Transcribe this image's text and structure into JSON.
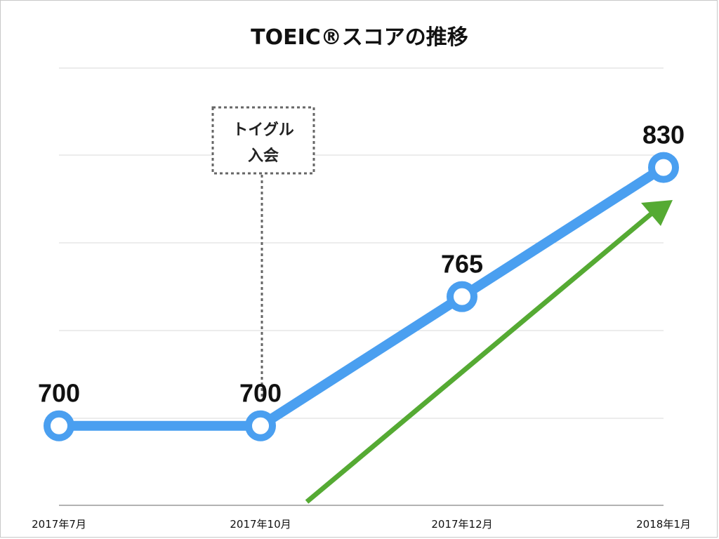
{
  "chart_data": {
    "type": "line",
    "title": "TOEIC®スコアの推移",
    "categories": [
      "2017年7月",
      "2017年10月",
      "2017年12月",
      "2018年1月"
    ],
    "series": [
      {
        "values": [
          700,
          700,
          765,
          830
        ],
        "color": "#4a9ff0"
      }
    ],
    "data_labels": [
      "700",
      "700",
      "765",
      "830"
    ],
    "ylim": [
      660,
      880
    ],
    "grid": true,
    "annotation": {
      "lines": [
        "トイグル",
        "入会"
      ],
      "category": "2017年10月"
    },
    "trend_arrow_color": "#55aa33"
  }
}
